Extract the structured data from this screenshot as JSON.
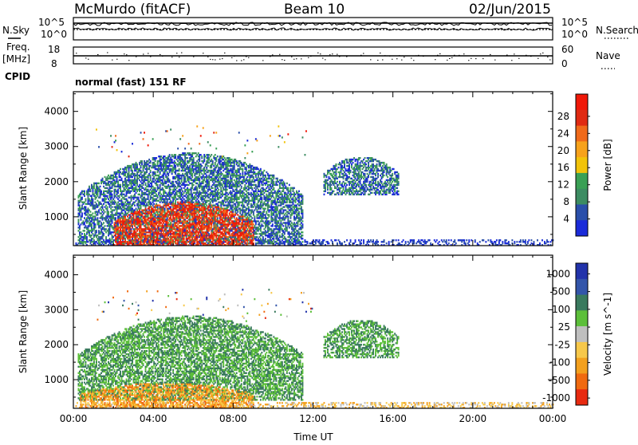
{
  "header": {
    "station": "McMurdo (fitACF)",
    "beam": "Beam 10",
    "date": "02/Jun/2015"
  },
  "status_panels": {
    "left_labels": {
      "nsky": "N.Sky",
      "freq": "Freq.",
      "freq_unit": "[MHz]",
      "cpid": "CPID"
    },
    "right_labels": {
      "nsearch": "N.Search",
      "nave": "Nave"
    },
    "nsky_ticks": [
      "10^5",
      "10^0"
    ],
    "nsearch_ticks": [
      "10^5",
      "10^0"
    ],
    "freq_ticks": [
      "18",
      "8"
    ],
    "nave_ticks": [
      "60",
      "0"
    ],
    "cpid_text": "normal (fast) 151 RF"
  },
  "colors": {
    "power_scale": [
      "#1a2bd9",
      "#2a4faa",
      "#3c8c62",
      "#3aa055",
      "#f2c30a",
      "#f7a21b",
      "#f06a1a",
      "#e02a12",
      "#f01808"
    ],
    "velocity_scale": [
      "#2233aa",
      "#3355aa",
      "#3a7a5e",
      "#5cbf3a",
      "#bfbfbf",
      "#f7c84a",
      "#f3a01e",
      "#f06a10",
      "#e82a10"
    ]
  },
  "chart_data": [
    {
      "type": "heatmap",
      "title": "",
      "xlabel": "",
      "ylabel": "Slant Range [km]",
      "xlim": [
        "00:00",
        "24:00"
      ],
      "ylim": [
        180,
        4560
      ],
      "x_ticks": [
        "00:00",
        "04:00",
        "08:00",
        "12:00",
        "16:00",
        "20:00",
        "00:00"
      ],
      "y_ticks": [
        1000,
        2000,
        3000,
        4000
      ],
      "colorbar": {
        "label": "Power [dB]",
        "ticks": [
          "4",
          "8",
          "12",
          "16",
          "20",
          "24",
          "28"
        ]
      },
      "echo_regions": [
        {
          "time_start_h": 0.2,
          "time_end_h": 11.5,
          "range_low_km": 200,
          "range_high_km": 2800,
          "power_db": "4-12"
        },
        {
          "time_start_h": 2.0,
          "time_end_h": 9.0,
          "range_low_km": 180,
          "range_high_km": 1400,
          "power_db": "20-30"
        },
        {
          "time_start_h": 12.5,
          "time_end_h": 16.3,
          "range_low_km": 1600,
          "range_high_km": 2700,
          "power_db": "4-12"
        }
      ]
    },
    {
      "type": "heatmap",
      "title": "",
      "xlabel": "Time UT",
      "ylabel": "Slant Range [km]",
      "xlim": [
        "00:00",
        "24:00"
      ],
      "ylim": [
        180,
        4560
      ],
      "x_ticks": [
        "00:00",
        "04:00",
        "08:00",
        "12:00",
        "16:00",
        "20:00",
        "00:00"
      ],
      "y_ticks": [
        1000,
        2000,
        3000,
        4000
      ],
      "colorbar": {
        "label": "Velocity [m s^-1]",
        "ticks": [
          "1000",
          "500",
          "100",
          "25",
          "-25",
          "-100",
          "-500",
          "-1000"
        ]
      },
      "echo_regions": [
        {
          "time_start_h": 0.2,
          "time_end_h": 11.5,
          "range_low_km": 400,
          "range_high_km": 2800,
          "velocity": "100-500"
        },
        {
          "time_start_h": 0.3,
          "time_end_h": 9.0,
          "range_low_km": 180,
          "range_high_km": 900,
          "velocity": "-100 to -500"
        },
        {
          "time_start_h": 12.5,
          "time_end_h": 16.3,
          "range_low_km": 1600,
          "range_high_km": 2700,
          "velocity": "100-500"
        }
      ]
    }
  ]
}
